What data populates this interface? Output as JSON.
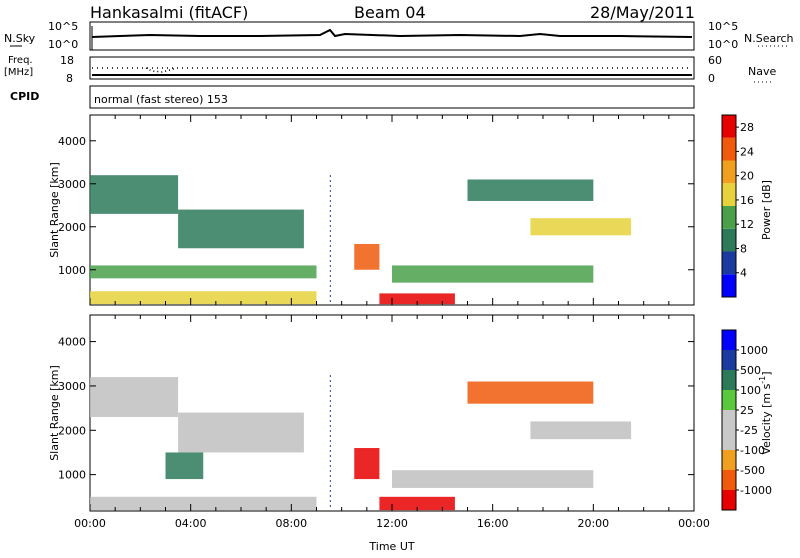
{
  "header": {
    "station": "Hankasalmi (fitACF)",
    "beam": "Beam 04",
    "date": "28/May/2011"
  },
  "top_panels": {
    "nsky_label": "N.Sky",
    "nsky_ticks": [
      "10^5",
      "10^0"
    ],
    "nsearch_label": "N.Search",
    "nsearch_ticks": [
      "10^5",
      "10^0"
    ],
    "freq_label": "Freq.",
    "freq_unit": "[MHz]",
    "freq_ticks": [
      "18",
      "8"
    ],
    "nave_label": "Nave",
    "nave_ticks": [
      "60",
      "0"
    ],
    "cpid_label": "CPID",
    "mode_text": "normal (fast stereo) 153"
  },
  "colors": {
    "power_scale": [
      "#0000ff",
      "#1a3aa0",
      "#2d7a5a",
      "#4aa04a",
      "#e6d23c",
      "#f0a01e",
      "#f05a0a",
      "#e60000"
    ],
    "velocity_scale": [
      "#e60000",
      "#f05a0a",
      "#f0a01e",
      "#c8c8c8",
      "#c8c8c8",
      "#5ac83c",
      "#2d7a5a",
      "#1a3aa0",
      "#0000ff"
    ],
    "ground_scatter": "#c0c0c0"
  },
  "chart_data": [
    {
      "type": "heatmap",
      "title": "",
      "xlabel": "",
      "ylabel": "Slant Range [km]",
      "xlim": [
        0,
        24
      ],
      "ylim": [
        180,
        4600
      ],
      "yticks": [
        1000,
        2000,
        3000,
        4000
      ],
      "colorbar": {
        "label": "Power [dB]",
        "ticks": [
          4,
          8,
          12,
          16,
          20,
          24,
          28
        ],
        "range": [
          0,
          30
        ]
      },
      "echo_regions": [
        {
          "t0": 0.0,
          "t1": 3.5,
          "r0": 2300,
          "r1": 3200,
          "level": 8
        },
        {
          "t0": 3.5,
          "t1": 8.5,
          "r0": 1500,
          "r1": 2400,
          "level": 8
        },
        {
          "t0": 0.0,
          "t1": 9.0,
          "r0": 800,
          "r1": 1100,
          "level": 12
        },
        {
          "t0": 0.0,
          "t1": 9.0,
          "r0": 200,
          "r1": 500,
          "level": 16
        },
        {
          "t0": 10.5,
          "t1": 11.5,
          "r0": 1000,
          "r1": 1600,
          "level": 24
        },
        {
          "t0": 11.5,
          "t1": 14.5,
          "r0": 200,
          "r1": 450,
          "level": 28
        },
        {
          "t0": 12.0,
          "t1": 20.0,
          "r0": 700,
          "r1": 1100,
          "level": 12
        },
        {
          "t0": 15.0,
          "t1": 20.0,
          "r0": 2600,
          "r1": 3100,
          "level": 8
        },
        {
          "t0": 17.5,
          "t1": 21.5,
          "r0": 1800,
          "r1": 2200,
          "level": 16
        }
      ]
    },
    {
      "type": "heatmap",
      "title": "",
      "xlabel": "Time UT",
      "ylabel": "Slant Range [km]",
      "xlim": [
        0,
        24
      ],
      "ylim": [
        180,
        4600
      ],
      "xticks": [
        "00:00",
        "04:00",
        "08:00",
        "12:00",
        "16:00",
        "20:00",
        "00:00"
      ],
      "yticks": [
        1000,
        2000,
        3000,
        4000
      ],
      "colorbar": {
        "label": "Velocity [m s",
        "label_superscript": "-1",
        "label_end": "]",
        "ticks": [
          "1000",
          "500",
          "100",
          "25",
          "-25",
          "-100",
          "-500",
          "-1000"
        ]
      },
      "echo_regions": [
        {
          "t0": 0.0,
          "t1": 3.5,
          "r0": 2300,
          "r1": 3200,
          "velocity": 0
        },
        {
          "t0": 3.5,
          "t1": 8.5,
          "r0": 1500,
          "r1": 2400,
          "velocity": 0
        },
        {
          "t0": 3.0,
          "t1": 4.5,
          "r0": 900,
          "r1": 1500,
          "velocity": 100
        },
        {
          "t0": 0.0,
          "t1": 9.0,
          "r0": 200,
          "r1": 500,
          "velocity": 0
        },
        {
          "t0": 10.5,
          "t1": 11.5,
          "r0": 900,
          "r1": 1600,
          "velocity": -500
        },
        {
          "t0": 11.5,
          "t1": 14.5,
          "r0": 200,
          "r1": 500,
          "velocity": -500
        },
        {
          "t0": 12.0,
          "t1": 20.0,
          "r0": 700,
          "r1": 1100,
          "velocity": 0
        },
        {
          "t0": 15.0,
          "t1": 20.0,
          "r0": 2600,
          "r1": 3100,
          "velocity": -100
        },
        {
          "t0": 17.5,
          "t1": 21.5,
          "r0": 1800,
          "r1": 2200,
          "velocity": 0
        }
      ]
    }
  ]
}
